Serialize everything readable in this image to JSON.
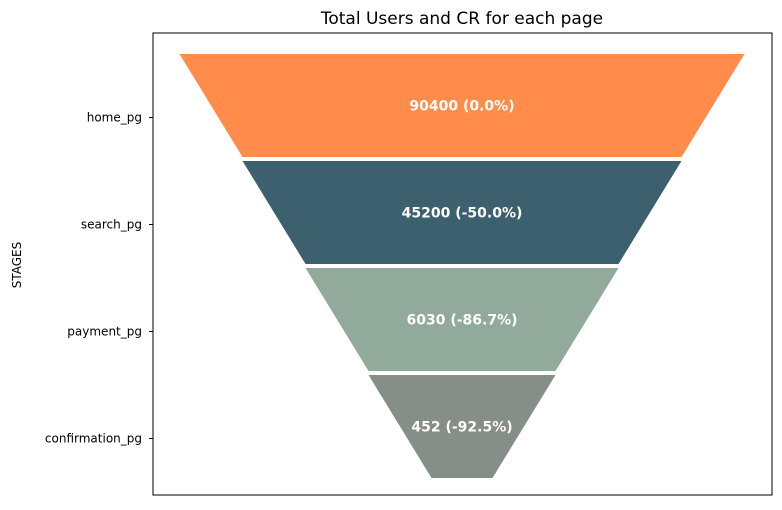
{
  "chart_data": {
    "type": "funnel",
    "title": "Total Users and CR for each page",
    "ylabel": "STAGES",
    "categories": [
      "home_pg",
      "search_pg",
      "payment_pg",
      "confirmation_pg"
    ],
    "values": [
      90400,
      45200,
      6030,
      452
    ],
    "data_labels": [
      "90400 (0.0%)",
      "45200 (-50.0%)",
      "6030 (-86.7%)",
      "452 (-92.5%)"
    ],
    "colors": [
      "#FF8C4A",
      "#3D606E",
      "#92AA9C",
      "#868E88"
    ],
    "grid": false,
    "legend": "none"
  }
}
